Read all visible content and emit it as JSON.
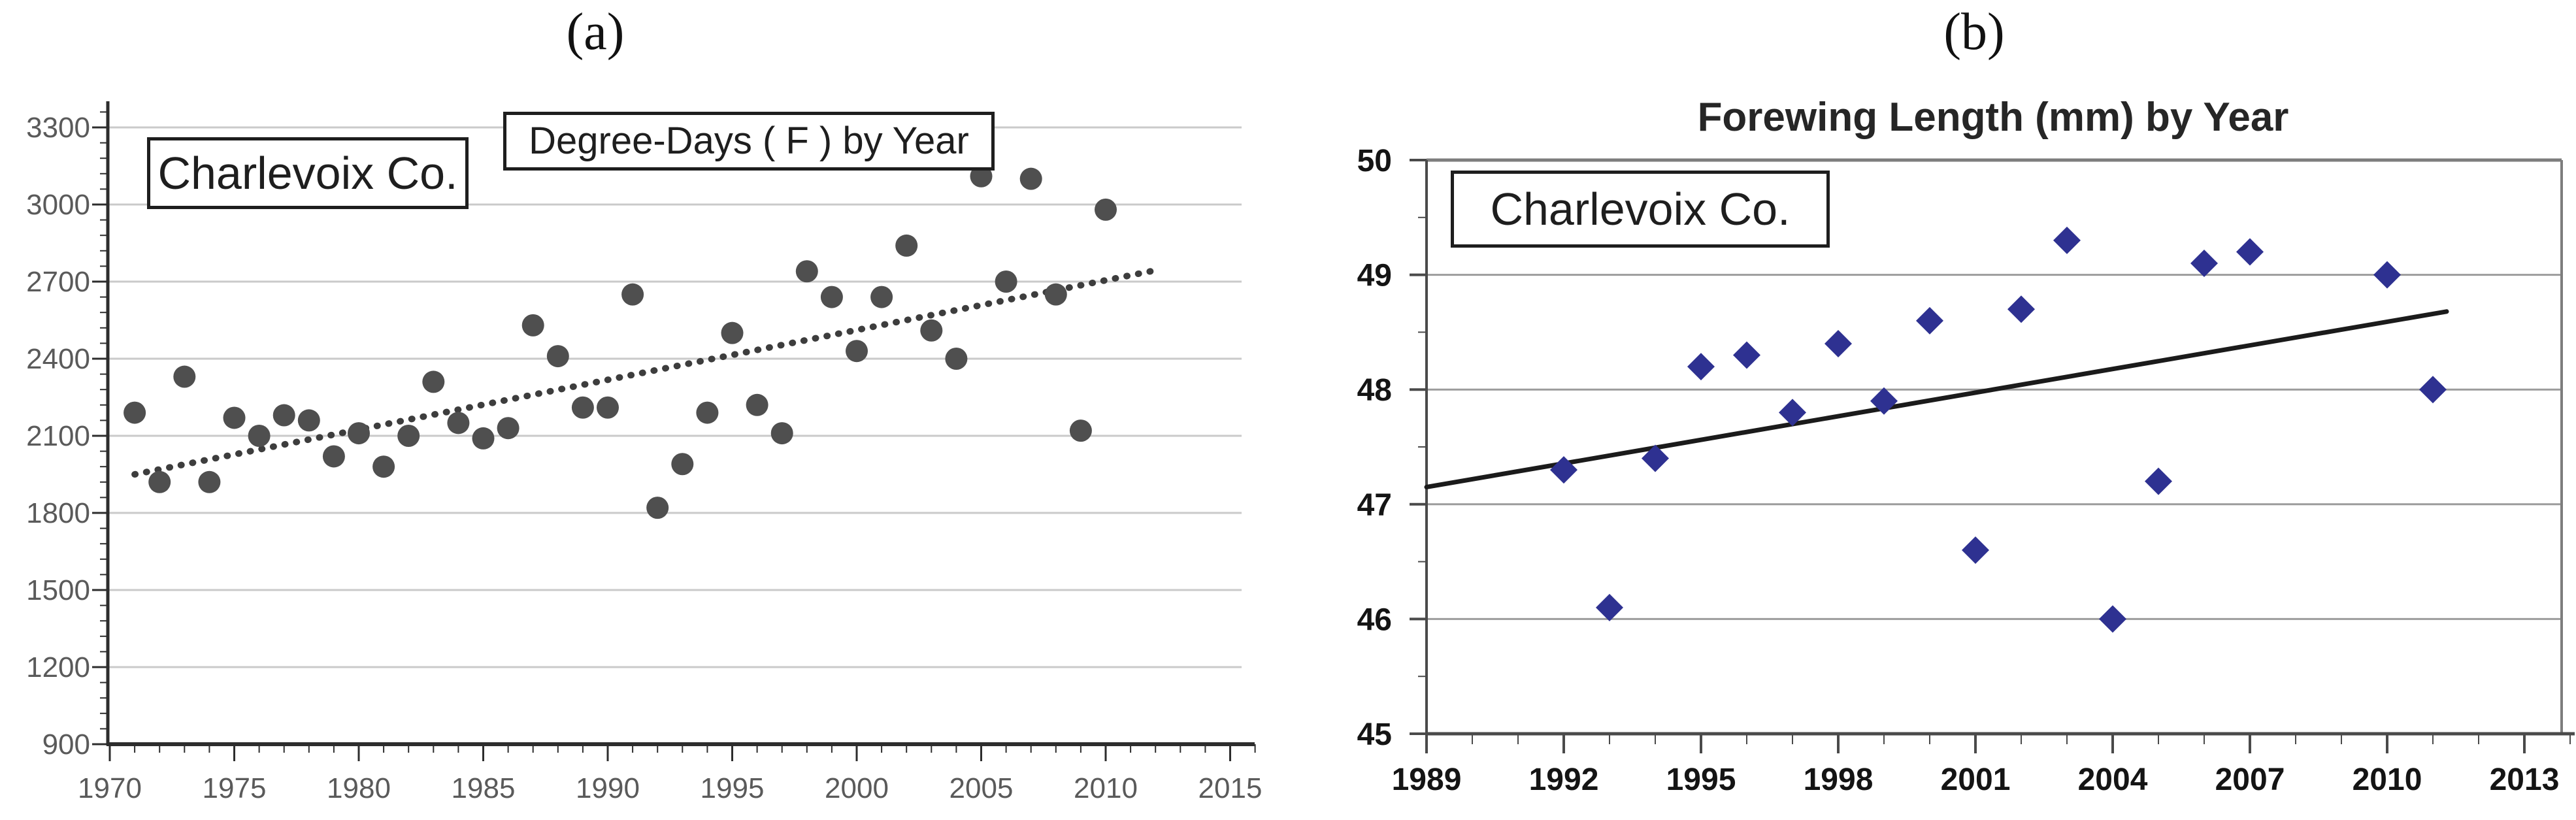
{
  "figure": {
    "background": "#ffffff",
    "panels": [
      {
        "label": "(a)"
      },
      {
        "label": "(b)"
      }
    ]
  },
  "chart_data": [
    {
      "id": "a",
      "type": "scatter",
      "panel_label": "(a)",
      "title": "Degree-Days ( F ) by Year",
      "annotation": "Charlevoix Co.",
      "xlabel": "",
      "ylabel": "",
      "grid": true,
      "legend_position": "none",
      "xlim": [
        1970,
        2016.5
      ],
      "ylim": [
        900,
        3400
      ],
      "xticks": [
        1970,
        1975,
        1980,
        1985,
        1990,
        1995,
        2000,
        2005,
        2010,
        2015
      ],
      "yticks": [
        3300,
        3000,
        2700,
        2400,
        2100,
        1800,
        1500,
        1200,
        900
      ],
      "x": [
        1971,
        1972,
        1973,
        1974,
        1975,
        1976,
        1977,
        1978,
        1979,
        1980,
        1981,
        1982,
        1983,
        1984,
        1985,
        1986,
        1987,
        1988,
        1989,
        1990,
        1991,
        1992,
        1993,
        1994,
        1995,
        1996,
        1997,
        1998,
        1999,
        2000,
        2001,
        2002,
        2003,
        2004,
        2005,
        2006,
        2007,
        2008,
        2009,
        2010
      ],
      "y": [
        2190,
        1920,
        2330,
        1920,
        2170,
        2100,
        2180,
        2160,
        2020,
        2110,
        1980,
        2100,
        2310,
        2150,
        2090,
        2130,
        2530,
        2410,
        2210,
        2210,
        2650,
        1820,
        1990,
        2190,
        2500,
        2220,
        2110,
        2740,
        2640,
        2430,
        2640,
        2840,
        2510,
        2400,
        3110,
        2700,
        3100,
        2650,
        2120,
        2980
      ],
      "marker": {
        "shape": "circle",
        "color": "#4f4f4f"
      },
      "trendline": {
        "style": "dotted",
        "color": "#3d3d3d",
        "x1": 1971,
        "y1": 1950,
        "x2": 2011.8,
        "y2": 2740
      }
    },
    {
      "id": "b",
      "type": "scatter",
      "panel_label": "(b)",
      "title": "Forewing Length (mm) by Year",
      "annotation": "Charlevoix Co.",
      "xlabel": "",
      "ylabel": "",
      "grid": true,
      "legend_position": "none",
      "xlim": [
        1989,
        2014.6
      ],
      "ylim": [
        45,
        50
      ],
      "xticks": [
        1989,
        1992,
        1995,
        1998,
        2001,
        2004,
        2007,
        2010,
        2013
      ],
      "yticks": [
        50,
        49,
        48,
        47,
        46,
        45
      ],
      "x": [
        1992,
        1993,
        1994,
        1995,
        1996,
        1997,
        1998,
        1999,
        2000,
        2001,
        2002,
        2003,
        2004,
        2005,
        2006,
        2007,
        2010,
        2011
      ],
      "y": [
        47.3,
        46.1,
        47.4,
        48.2,
        48.3,
        47.8,
        48.4,
        47.9,
        48.6,
        46.6,
        48.7,
        49.3,
        46.0,
        47.2,
        49.1,
        49.2,
        49.0,
        48.0
      ],
      "marker": {
        "shape": "diamond",
        "color": "#2e3191"
      },
      "trendline": {
        "style": "solid",
        "color": "#1b1b1b",
        "x1": 1989,
        "y1": 47.15,
        "x2": 2011.3,
        "y2": 48.68
      }
    }
  ]
}
